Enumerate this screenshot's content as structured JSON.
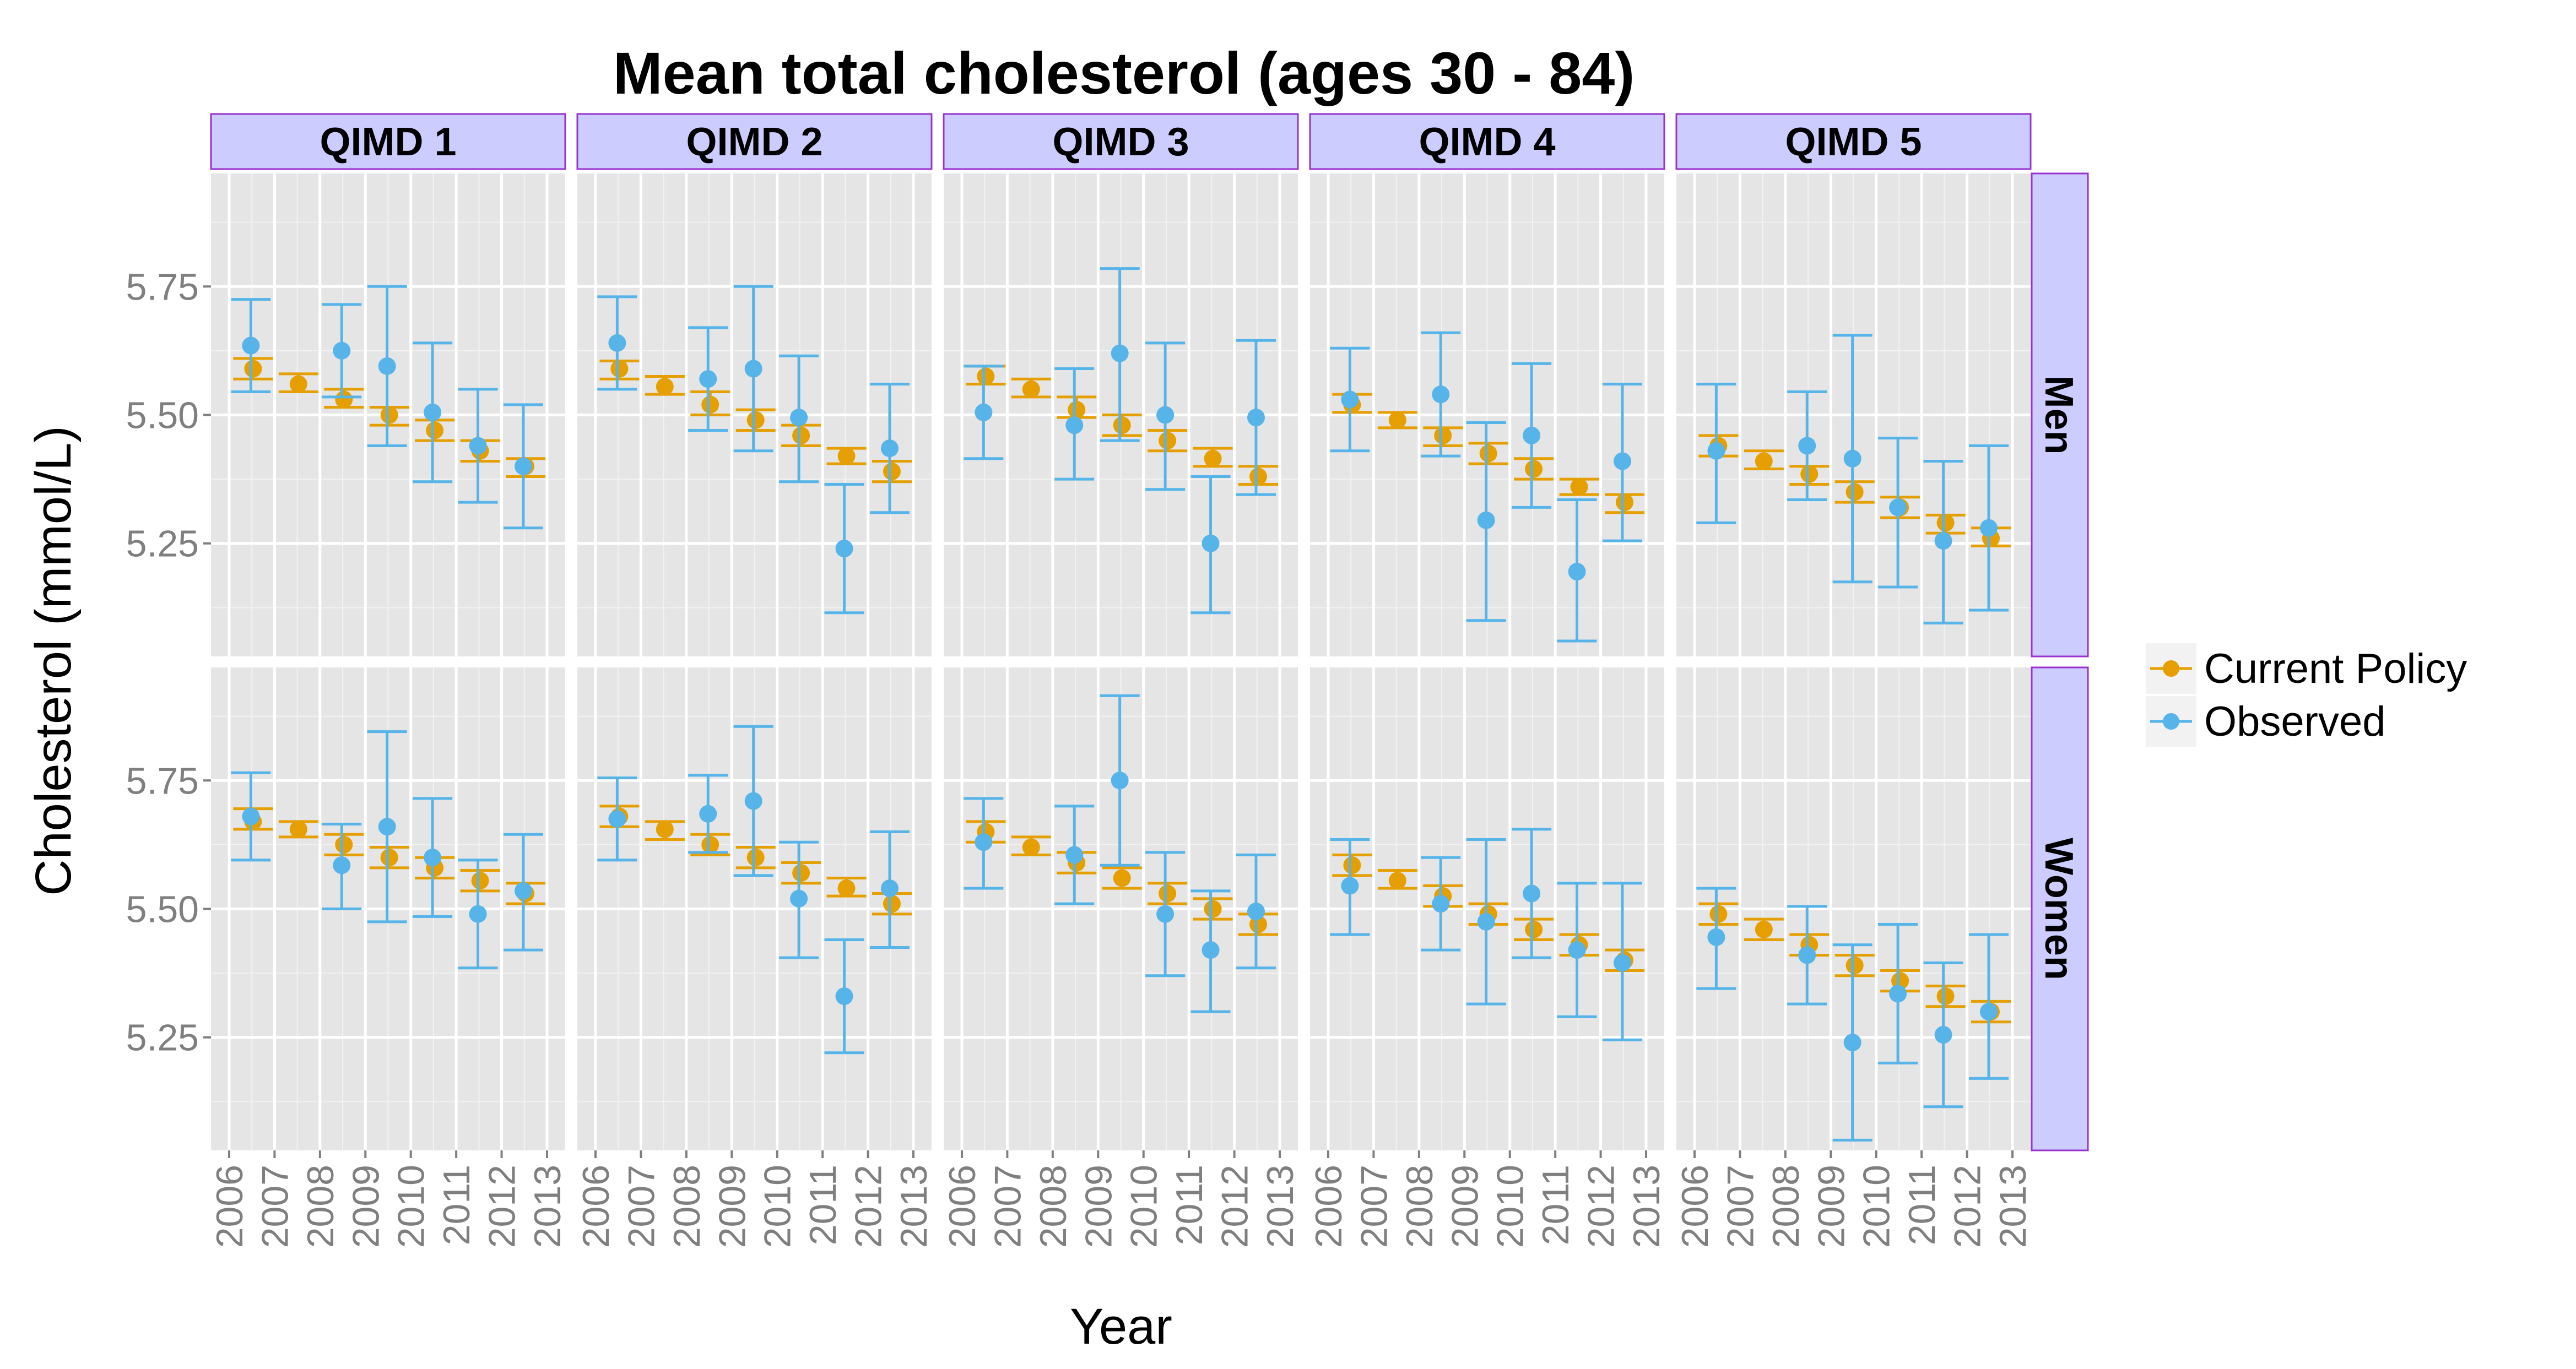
{
  "chart_data": {
    "type": "scatter",
    "title": "Mean total cholesterol (ages 30 - 84)",
    "xlabel": "Year",
    "ylabel": "Cholesterol (mmol/L)",
    "facet_columns": [
      "QIMD 1",
      "QIMD 2",
      "QIMD 3",
      "QIMD 4",
      "QIMD 5"
    ],
    "facet_rows": [
      "Men",
      "Women"
    ],
    "x_ticks": [
      "2006",
      "2007",
      "2008",
      "2009",
      "2010",
      "2011",
      "2012",
      "2013"
    ],
    "y_ticks": [
      "5.25",
      "5.50",
      "5.75"
    ],
    "ylim": [
      5.03,
      5.97
    ],
    "xlim": [
      2005.6,
      2013.4
    ],
    "grid": true,
    "legend_position": "right",
    "series": [
      {
        "name": "Current Policy",
        "color": "#E69F00",
        "panels": {
          "Men": {
            "QIMD 1": [
              [
                2006,
                5.59,
                5.57,
                5.61
              ],
              [
                2007,
                5.56,
                5.545,
                5.58
              ],
              [
                2008,
                5.53,
                5.515,
                5.55
              ],
              [
                2009,
                5.5,
                5.48,
                5.515
              ],
              [
                2010,
                5.47,
                5.45,
                5.49
              ],
              [
                2011,
                5.43,
                5.41,
                5.45
              ],
              [
                2012,
                5.4,
                5.38,
                5.415
              ]
            ],
            "QIMD 2": [
              [
                2006,
                5.59,
                5.57,
                5.605
              ],
              [
                2007,
                5.555,
                5.54,
                5.575
              ],
              [
                2008,
                5.52,
                5.5,
                5.545
              ],
              [
                2009,
                5.49,
                5.47,
                5.51
              ],
              [
                2010,
                5.46,
                5.44,
                5.48
              ],
              [
                2011,
                5.42,
                5.405,
                5.435
              ],
              [
                2012,
                5.39,
                5.37,
                5.41
              ]
            ],
            "QIMD 3": [
              [
                2006,
                5.575,
                5.56,
                5.595
              ],
              [
                2007,
                5.55,
                5.535,
                5.57
              ],
              [
                2008,
                5.51,
                5.495,
                5.535
              ],
              [
                2009,
                5.48,
                5.46,
                5.5
              ],
              [
                2010,
                5.45,
                5.43,
                5.47
              ],
              [
                2011,
                5.415,
                5.4,
                5.435
              ],
              [
                2012,
                5.38,
                5.365,
                5.4
              ]
            ],
            "QIMD 4": [
              [
                2006,
                5.52,
                5.505,
                5.54
              ],
              [
                2007,
                5.49,
                5.475,
                5.505
              ],
              [
                2008,
                5.46,
                5.44,
                5.475
              ],
              [
                2009,
                5.425,
                5.405,
                5.445
              ],
              [
                2010,
                5.395,
                5.375,
                5.415
              ],
              [
                2011,
                5.36,
                5.345,
                5.375
              ],
              [
                2012,
                5.33,
                5.31,
                5.345
              ]
            ],
            "QIMD 5": [
              [
                2006,
                5.44,
                5.42,
                5.46
              ],
              [
                2007,
                5.41,
                5.395,
                5.43
              ],
              [
                2008,
                5.385,
                5.365,
                5.4
              ],
              [
                2009,
                5.35,
                5.33,
                5.37
              ],
              [
                2010,
                5.32,
                5.3,
                5.34
              ],
              [
                2011,
                5.29,
                5.27,
                5.305
              ],
              [
                2012,
                5.26,
                5.245,
                5.28
              ]
            ]
          },
          "Women": {
            "QIMD 1": [
              [
                2006,
                5.67,
                5.655,
                5.695
              ],
              [
                2007,
                5.655,
                5.64,
                5.67
              ],
              [
                2008,
                5.625,
                5.605,
                5.645
              ],
              [
                2009,
                5.6,
                5.58,
                5.62
              ],
              [
                2010,
                5.58,
                5.56,
                5.6
              ],
              [
                2011,
                5.555,
                5.535,
                5.575
              ],
              [
                2012,
                5.53,
                5.51,
                5.55
              ]
            ],
            "QIMD 2": [
              [
                2006,
                5.68,
                5.66,
                5.7
              ],
              [
                2007,
                5.655,
                5.635,
                5.67
              ],
              [
                2008,
                5.625,
                5.605,
                5.645
              ],
              [
                2009,
                5.6,
                5.58,
                5.62
              ],
              [
                2010,
                5.57,
                5.55,
                5.59
              ],
              [
                2011,
                5.54,
                5.525,
                5.56
              ],
              [
                2012,
                5.51,
                5.49,
                5.53
              ]
            ],
            "QIMD 3": [
              [
                2006,
                5.65,
                5.63,
                5.67
              ],
              [
                2007,
                5.62,
                5.605,
                5.64
              ],
              [
                2008,
                5.59,
                5.57,
                5.61
              ],
              [
                2009,
                5.56,
                5.54,
                5.58
              ],
              [
                2010,
                5.53,
                5.51,
                5.55
              ],
              [
                2011,
                5.5,
                5.48,
                5.52
              ],
              [
                2012,
                5.47,
                5.45,
                5.49
              ]
            ],
            "QIMD 4": [
              [
                2006,
                5.585,
                5.565,
                5.605
              ],
              [
                2007,
                5.555,
                5.54,
                5.575
              ],
              [
                2008,
                5.525,
                5.505,
                5.545
              ],
              [
                2009,
                5.49,
                5.47,
                5.51
              ],
              [
                2010,
                5.46,
                5.44,
                5.48
              ],
              [
                2011,
                5.43,
                5.41,
                5.45
              ],
              [
                2012,
                5.4,
                5.38,
                5.42
              ]
            ],
            "QIMD 5": [
              [
                2006,
                5.49,
                5.47,
                5.51
              ],
              [
                2007,
                5.46,
                5.44,
                5.48
              ],
              [
                2008,
                5.43,
                5.41,
                5.45
              ],
              [
                2009,
                5.39,
                5.37,
                5.41
              ],
              [
                2010,
                5.36,
                5.34,
                5.38
              ],
              [
                2011,
                5.33,
                5.31,
                5.35
              ],
              [
                2012,
                5.3,
                5.28,
                5.32
              ]
            ]
          }
        }
      },
      {
        "name": "Observed",
        "color": "#56B4E9",
        "panels": {
          "Men": {
            "QIMD 1": [
              [
                2006,
                5.635,
                5.545,
                5.725
              ],
              [
                2008,
                5.625,
                5.535,
                5.715
              ],
              [
                2009,
                5.595,
                5.44,
                5.75
              ],
              [
                2010,
                5.505,
                5.37,
                5.64
              ],
              [
                2011,
                5.44,
                5.33,
                5.55
              ],
              [
                2012,
                5.4,
                5.28,
                5.52
              ]
            ],
            "QIMD 2": [
              [
                2006,
                5.64,
                5.55,
                5.73
              ],
              [
                2008,
                5.57,
                5.47,
                5.67
              ],
              [
                2009,
                5.59,
                5.43,
                5.75
              ],
              [
                2010,
                5.495,
                5.37,
                5.615
              ],
              [
                2011,
                5.24,
                5.115,
                5.365
              ],
              [
                2012,
                5.435,
                5.31,
                5.56
              ]
            ],
            "QIMD 3": [
              [
                2006,
                5.505,
                5.415,
                5.595
              ],
              [
                2008,
                5.48,
                5.375,
                5.59
              ],
              [
                2009,
                5.62,
                5.45,
                5.785
              ],
              [
                2010,
                5.5,
                5.355,
                5.64
              ],
              [
                2011,
                5.25,
                5.115,
                5.38
              ],
              [
                2012,
                5.495,
                5.345,
                5.645
              ]
            ],
            "QIMD 4": [
              [
                2006,
                5.53,
                5.43,
                5.63
              ],
              [
                2008,
                5.54,
                5.42,
                5.66
              ],
              [
                2009,
                5.295,
                5.1,
                5.485
              ],
              [
                2010,
                5.46,
                5.32,
                5.6
              ],
              [
                2011,
                5.195,
                5.06,
                5.335
              ],
              [
                2012,
                5.41,
                5.255,
                5.56
              ]
            ],
            "QIMD 5": [
              [
                2006,
                5.43,
                5.29,
                5.56
              ],
              [
                2008,
                5.44,
                5.335,
                5.545
              ],
              [
                2009,
                5.415,
                5.175,
                5.655
              ],
              [
                2010,
                5.32,
                5.165,
                5.455
              ],
              [
                2011,
                5.255,
                5.095,
                5.41
              ],
              [
                2012,
                5.28,
                5.12,
                5.44
              ]
            ]
          },
          "Women": {
            "QIMD 1": [
              [
                2006,
                5.68,
                5.595,
                5.765
              ],
              [
                2008,
                5.585,
                5.5,
                5.665
              ],
              [
                2009,
                5.66,
                5.475,
                5.845
              ],
              [
                2010,
                5.6,
                5.485,
                5.715
              ],
              [
                2011,
                5.49,
                5.385,
                5.595
              ],
              [
                2012,
                5.535,
                5.42,
                5.645
              ]
            ],
            "QIMD 2": [
              [
                2006,
                5.675,
                5.595,
                5.755
              ],
              [
                2008,
                5.685,
                5.61,
                5.76
              ],
              [
                2009,
                5.71,
                5.565,
                5.855
              ],
              [
                2010,
                5.52,
                5.405,
                5.63
              ],
              [
                2011,
                5.33,
                5.22,
                5.44
              ],
              [
                2012,
                5.54,
                5.425,
                5.65
              ]
            ],
            "QIMD 3": [
              [
                2006,
                5.63,
                5.54,
                5.715
              ],
              [
                2008,
                5.605,
                5.51,
                5.7
              ],
              [
                2009,
                5.75,
                5.585,
                5.915
              ],
              [
                2010,
                5.49,
                5.37,
                5.61
              ],
              [
                2011,
                5.42,
                5.3,
                5.535
              ],
              [
                2012,
                5.495,
                5.385,
                5.605
              ]
            ],
            "QIMD 4": [
              [
                2006,
                5.545,
                5.45,
                5.635
              ],
              [
                2008,
                5.51,
                5.42,
                5.6
              ],
              [
                2009,
                5.475,
                5.315,
                5.635
              ],
              [
                2010,
                5.53,
                5.405,
                5.655
              ],
              [
                2011,
                5.42,
                5.29,
                5.55
              ],
              [
                2012,
                5.395,
                5.245,
                5.55
              ]
            ],
            "QIMD 5": [
              [
                2006,
                5.445,
                5.345,
                5.54
              ],
              [
                2008,
                5.41,
                5.315,
                5.505
              ],
              [
                2009,
                5.24,
                5.05,
                5.43
              ],
              [
                2010,
                5.335,
                5.2,
                5.47
              ],
              [
                2011,
                5.255,
                5.115,
                5.395
              ],
              [
                2012,
                5.3,
                5.17,
                5.45
              ]
            ]
          }
        }
      }
    ]
  }
}
